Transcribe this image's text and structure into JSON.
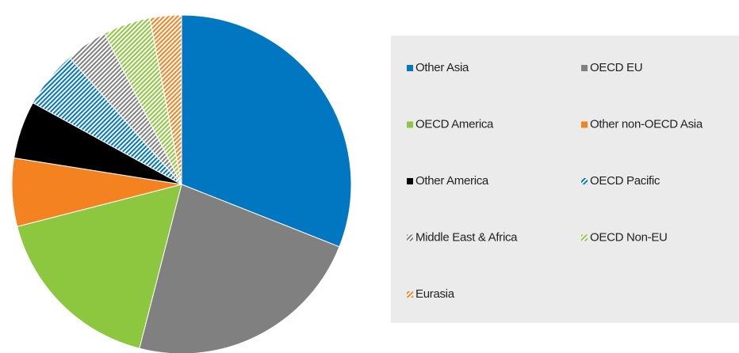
{
  "chart_data": {
    "type": "pie",
    "categories": [
      "Other Asia",
      "OECD EU",
      "OECD America",
      "Other non-OECD Asia",
      "Other America",
      "OECD Pacific",
      "Middle East & Africa",
      "OECD Non-EU",
      "Eurasia"
    ],
    "values": [
      31,
      23,
      17,
      6.5,
      5.5,
      5.5,
      4,
      4.5,
      3
    ],
    "colors": [
      "#0077c0",
      "#808080",
      "#8dc63f",
      "#f58220",
      "#000000",
      "#0077c0",
      "#808080",
      "#8dc63f",
      "#f58220"
    ],
    "hatched": [
      false,
      false,
      false,
      false,
      false,
      true,
      true,
      true,
      true
    ],
    "legend": "right"
  }
}
